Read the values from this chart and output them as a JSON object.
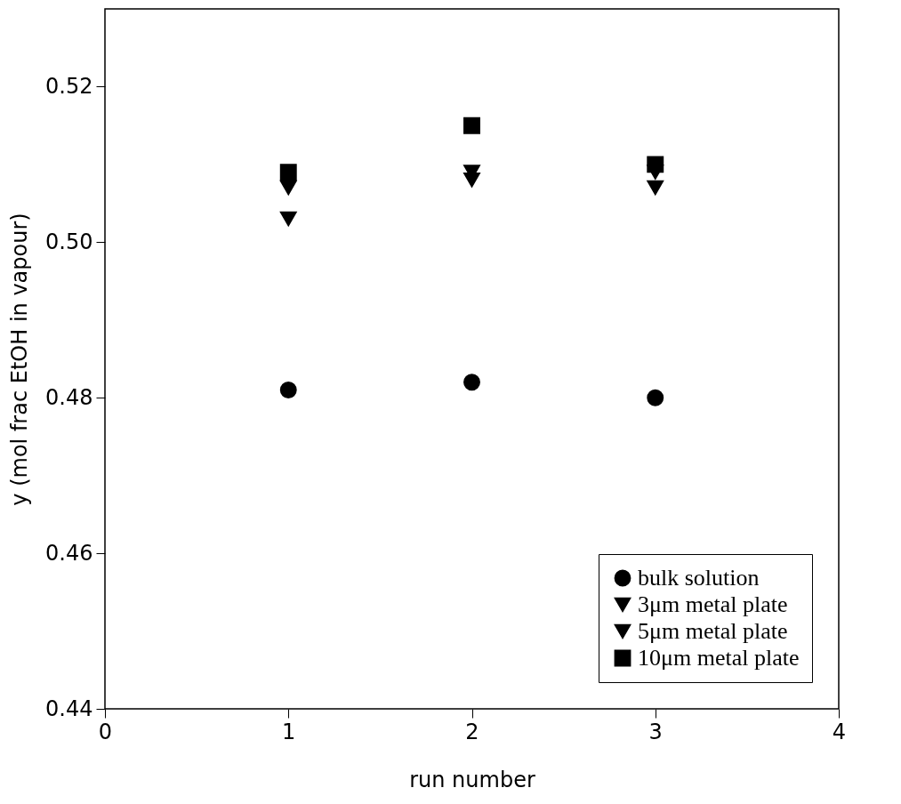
{
  "chart_data": {
    "type": "scatter",
    "xlabel": "run number",
    "ylabel": "y (mol frac EtOH in vapour)",
    "x": [
      1,
      2,
      3
    ],
    "series": [
      {
        "name": "bulk solution",
        "color": "#000000",
        "marker": "circle",
        "values": [
          0.481,
          0.482,
          0.48
        ]
      },
      {
        "name": "3μm metal plate",
        "color": "#000000",
        "marker": "triangle",
        "values": [
          0.507,
          0.509,
          0.509
        ]
      },
      {
        "name": "5μm metal plate",
        "color": "#000000",
        "marker": "triangle",
        "values": [
          0.503,
          0.508,
          0.507
        ]
      },
      {
        "name": "10μm metal plate",
        "color": "#000000",
        "marker": "square",
        "values": [
          0.509,
          0.515,
          0.51
        ]
      }
    ],
    "xlim": [
      0,
      4
    ],
    "xticks": [
      0,
      1,
      2,
      3,
      4
    ],
    "ylim": [
      0.44,
      0.53
    ],
    "yticks": [
      0.44,
      0.46,
      0.48,
      {
        "value": 0.5,
        "label": "0.50"
      },
      0.52
    ],
    "grid": false,
    "legend": "bottom right"
  }
}
